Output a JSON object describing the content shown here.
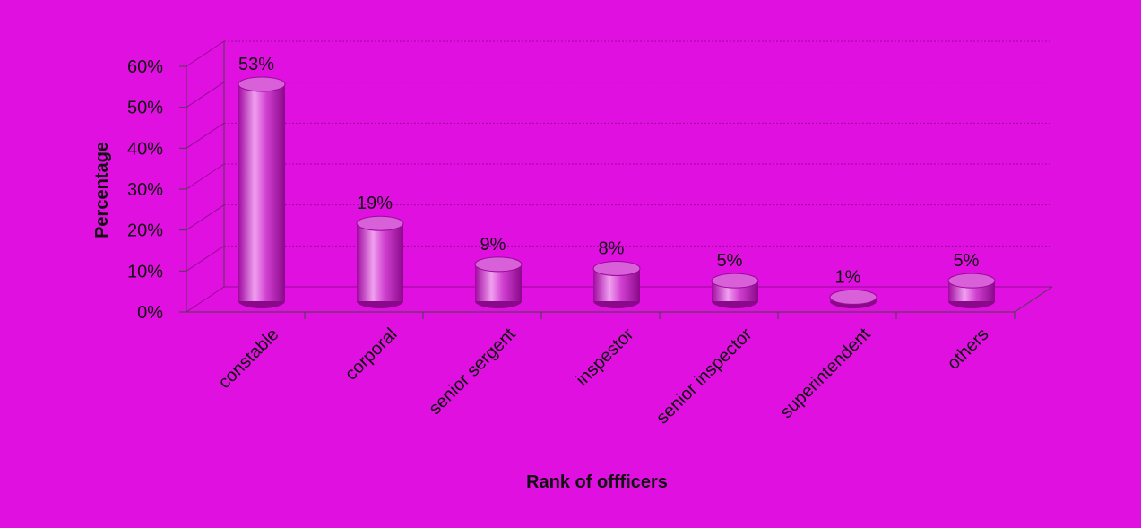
{
  "colors": {
    "background": "#e010e0",
    "bar_side": "#b80cb8",
    "bar_highlight": "#f0a0f0",
    "bar_top": "#d860d8",
    "gridline": "#9a089a",
    "axis": "#444444"
  },
  "chart_data": {
    "type": "bar",
    "style": "3d-cylinder",
    "title": "",
    "xlabel": "Rank of offficers",
    "ylabel": "Percentage",
    "ylim": [
      0,
      60
    ],
    "yticks": [
      "0%",
      "10%",
      "20%",
      "30%",
      "40%",
      "50%",
      "60%"
    ],
    "ytick_values": [
      0,
      10,
      20,
      30,
      40,
      50,
      60
    ],
    "grid": true,
    "legend": "none",
    "categories": [
      "constable",
      "corporal",
      "senior sergent",
      "inspestor",
      "senior inspector",
      "superintendent",
      "others"
    ],
    "values": [
      53,
      19,
      9,
      8,
      5,
      1,
      5
    ],
    "data_labels": [
      "53%",
      "19%",
      "9%",
      "8%",
      "5%",
      "1%",
      "5%"
    ]
  }
}
